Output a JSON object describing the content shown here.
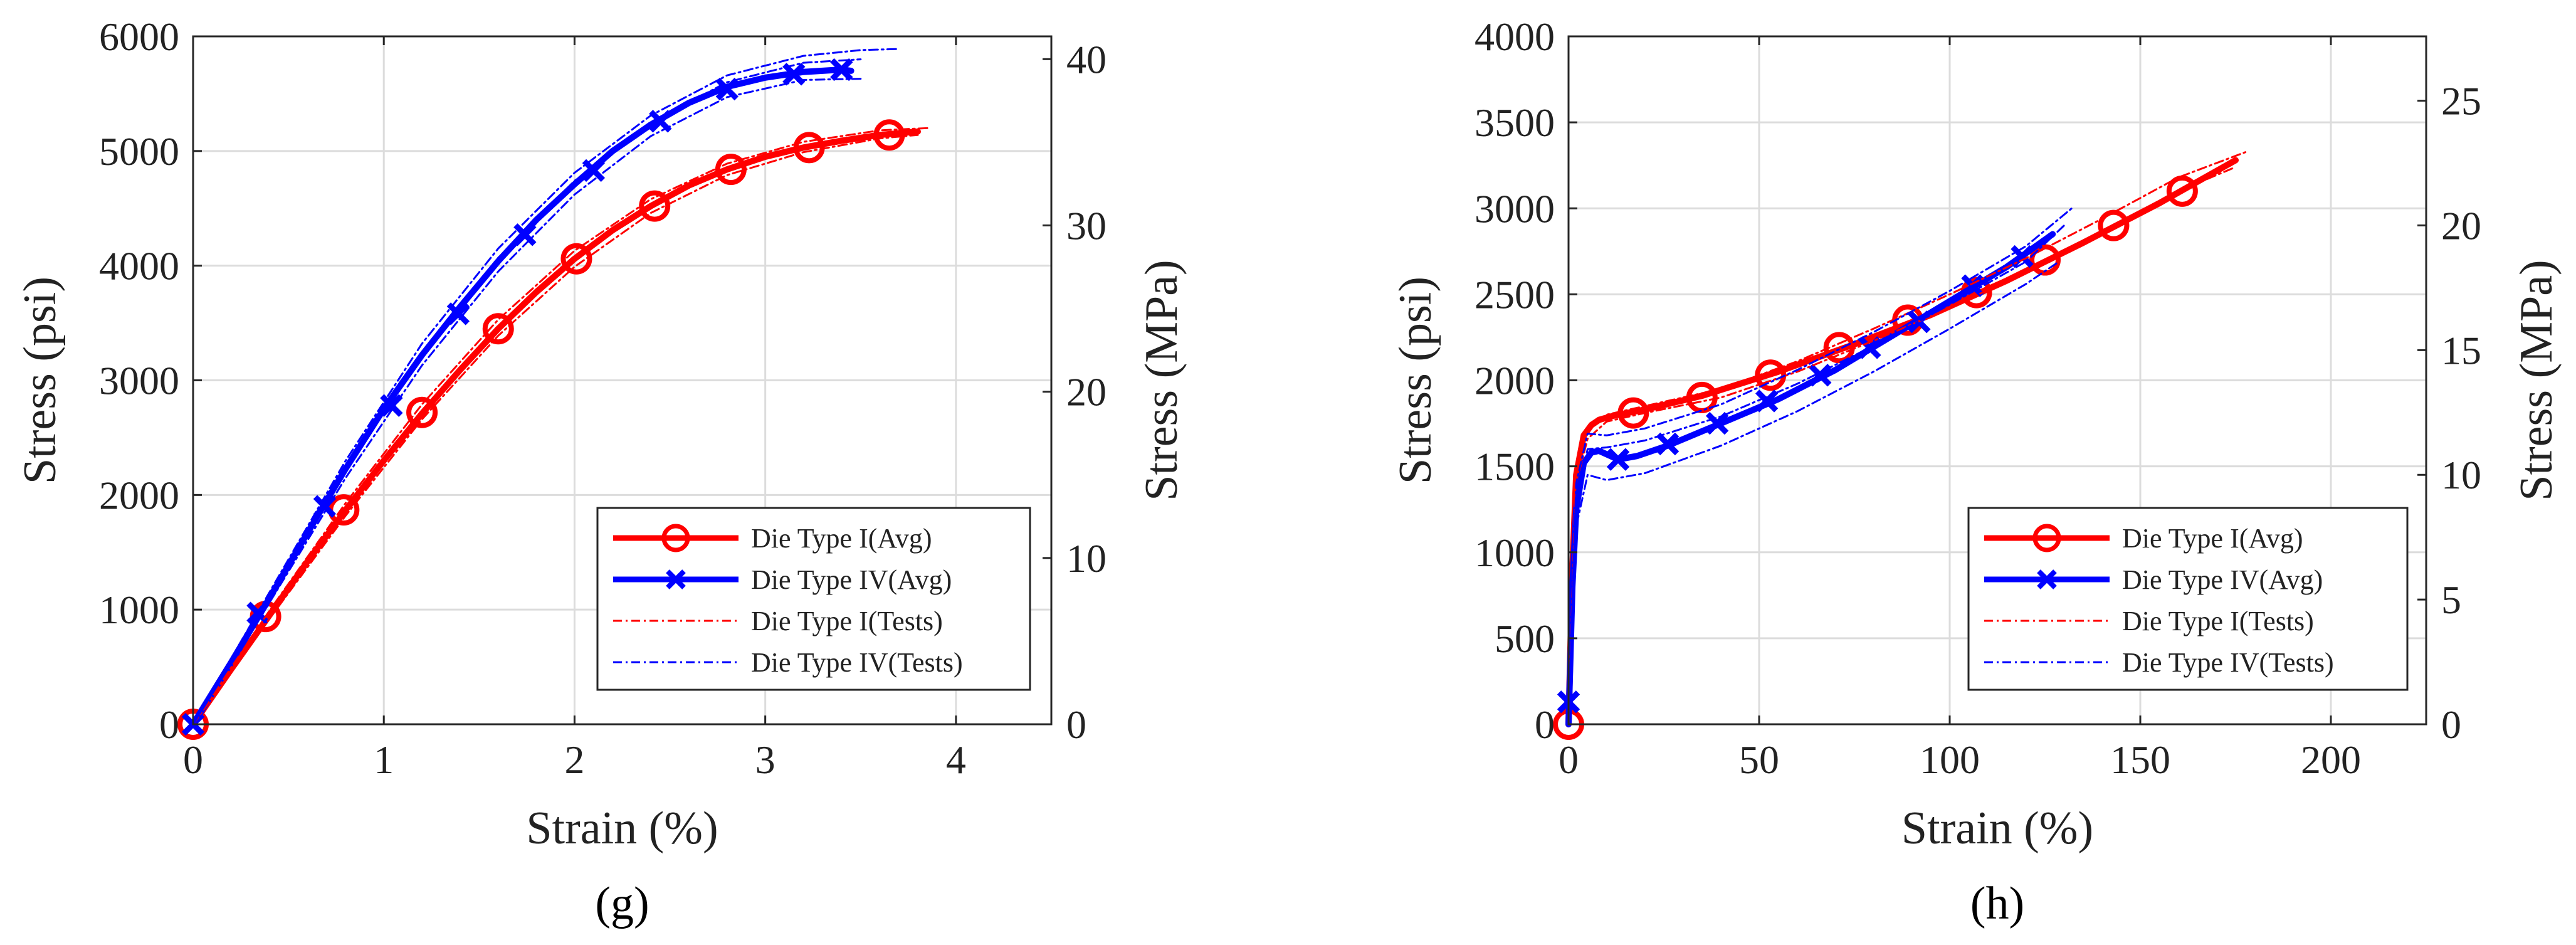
{
  "chart_data": [
    {
      "type": "line",
      "panel_label": "(g)",
      "xlabel": "Strain (%)",
      "ylabel": "Stress (psi)",
      "ylabel_right": "Stress (MPa)",
      "xlim": [
        0,
        4.5
      ],
      "ylim": [
        0,
        6000
      ],
      "ylim_right": [
        0,
        41.37
      ],
      "xticks": [
        0,
        1,
        2,
        3,
        4
      ],
      "yticks": [
        0,
        1000,
        2000,
        3000,
        4000,
        5000,
        6000
      ],
      "yticks_right": [
        0,
        10,
        20,
        30,
        40
      ],
      "grid": true,
      "legend_position": "bottom-right",
      "legend": [
        "Die Type I(Avg)",
        "Die Type IV(Avg)",
        "Die Type I(Tests)",
        "Die Type IV(Tests)"
      ],
      "series": [
        {
          "name": "Die Type I(Avg)",
          "color": "#ff0000",
          "style": "solid",
          "marker": "circle",
          "x": [
            0,
            0.2,
            0.4,
            0.6,
            0.8,
            1.0,
            1.2,
            1.4,
            1.6,
            1.8,
            2.0,
            2.2,
            2.4,
            2.6,
            2.8,
            3.0,
            3.2,
            3.4,
            3.6,
            3.8
          ],
          "y": [
            0,
            480,
            950,
            1420,
            1870,
            2300,
            2710,
            3090,
            3450,
            3770,
            4060,
            4310,
            4520,
            4700,
            4840,
            4950,
            5030,
            5090,
            5140,
            5170
          ],
          "marker_x": [
            0,
            0.38,
            0.79,
            1.2,
            1.6,
            2.01,
            2.42,
            2.82,
            3.23,
            3.65
          ],
          "marker_y": [
            0,
            940,
            1870,
            2720,
            3450,
            4060,
            4520,
            4840,
            5030,
            5140
          ]
        },
        {
          "name": "Die Type IV(Avg)",
          "color": "#0000ff",
          "style": "solid",
          "marker": "x",
          "x": [
            0,
            0.2,
            0.4,
            0.6,
            0.8,
            1.0,
            1.2,
            1.4,
            1.6,
            1.8,
            2.0,
            2.2,
            2.4,
            2.6,
            2.8,
            3.0,
            3.2,
            3.4,
            3.45
          ],
          "y": [
            0,
            540,
            1100,
            1670,
            2230,
            2750,
            3220,
            3640,
            4040,
            4400,
            4710,
            5000,
            5230,
            5420,
            5560,
            5640,
            5690,
            5710,
            5700
          ],
          "marker_x": [
            0,
            0.34,
            0.69,
            1.04,
            1.39,
            1.74,
            2.1,
            2.45,
            2.8,
            3.15,
            3.4
          ],
          "marker_y": [
            0,
            970,
            1900,
            2780,
            3580,
            4270,
            4830,
            5260,
            5540,
            5670,
            5710
          ]
        },
        {
          "name": "Die Type I(Tests)",
          "color": "#ff0000",
          "style": "dashdot",
          "marker": "none",
          "runs": [
            {
              "x": [
                0,
                0.4,
                0.8,
                1.2,
                1.6,
                2.0,
                2.4,
                2.8,
                3.2,
                3.6,
                3.85
              ],
              "y": [
                0,
                990,
                1930,
                2790,
                3530,
                4130,
                4580,
                4890,
                5080,
                5180,
                5200
              ]
            },
            {
              "x": [
                0,
                0.4,
                0.8,
                1.2,
                1.6,
                2.0,
                2.4,
                2.8,
                3.2,
                3.6,
                3.8
              ],
              "y": [
                0,
                920,
                1820,
                2660,
                3390,
                3990,
                4460,
                4790,
                4990,
                5110,
                5140
              ]
            }
          ]
        },
        {
          "name": "Die Type IV(Tests)",
          "color": "#0000ff",
          "style": "dashdot",
          "marker": "none",
          "runs": [
            {
              "x": [
                0,
                0.4,
                0.8,
                1.2,
                1.6,
                2.0,
                2.4,
                2.8,
                3.2,
                3.5,
                3.7
              ],
              "y": [
                0,
                1150,
                2300,
                3320,
                4150,
                4810,
                5310,
                5660,
                5830,
                5880,
                5890
              ]
            },
            {
              "x": [
                0,
                0.4,
                0.8,
                1.2,
                1.6,
                2.0,
                2.4,
                2.8,
                3.2,
                3.5
              ],
              "y": [
                0,
                1120,
                2250,
                3250,
                4070,
                4740,
                5250,
                5600,
                5770,
                5800
              ]
            },
            {
              "x": [
                0,
                0.4,
                0.8,
                1.2,
                1.6,
                2.0,
                2.4,
                2.8,
                3.2,
                3.5
              ],
              "y": [
                0,
                1060,
                2150,
                3130,
                3950,
                4620,
                5130,
                5470,
                5620,
                5630
              ]
            }
          ]
        }
      ]
    },
    {
      "type": "line",
      "panel_label": "(h)",
      "xlabel": "Strain (%)",
      "ylabel": "Stress (psi)",
      "ylabel_right": "Stress (MPa)",
      "xlim": [
        0,
        225
      ],
      "ylim": [
        0,
        4000
      ],
      "ylim_right": [
        0,
        27.58
      ],
      "xticks": [
        0,
        50,
        100,
        150,
        200
      ],
      "yticks": [
        0,
        500,
        1000,
        1500,
        2000,
        2500,
        3000,
        3500,
        4000
      ],
      "yticks_right": [
        0,
        5,
        10,
        15,
        20,
        25
      ],
      "grid": true,
      "legend_position": "bottom-right",
      "legend": [
        "Die Type I(Avg)",
        "Die Type IV(Avg)",
        "Die Type I(Tests)",
        "Die Type IV(Tests)"
      ],
      "series": [
        {
          "name": "Die Type I(Avg)",
          "color": "#ff0000",
          "style": "solid",
          "marker": "circle",
          "x": [
            0,
            1,
            2,
            4,
            6,
            8,
            12,
            20,
            35,
            55,
            75,
            95,
            115,
            135,
            155,
            175
          ],
          "y": [
            0,
            900,
            1450,
            1680,
            1740,
            1770,
            1795,
            1830,
            1910,
            2050,
            2210,
            2380,
            2580,
            2800,
            3030,
            3280
          ],
          "marker_x": [
            0,
            17,
            35,
            53,
            71,
            89,
            107,
            125,
            143,
            161
          ],
          "marker_y": [
            0,
            1810,
            1900,
            2030,
            2190,
            2350,
            2510,
            2700,
            2900,
            3100
          ]
        },
        {
          "name": "Die Type IV(Avg)",
          "color": "#0000ff",
          "style": "solid",
          "marker": "x",
          "x": [
            0,
            1,
            2,
            4,
            6,
            8,
            10,
            13,
            18,
            26,
            40,
            55,
            70,
            85,
            100,
            115,
            127
          ],
          "y": [
            0,
            800,
            1250,
            1520,
            1580,
            1590,
            1570,
            1540,
            1560,
            1620,
            1750,
            1890,
            2060,
            2260,
            2460,
            2660,
            2850
          ],
          "marker_x": [
            0,
            13,
            26,
            39,
            52,
            66,
            79,
            92,
            106,
            119
          ],
          "marker_y": [
            130,
            1540,
            1630,
            1750,
            1880,
            2030,
            2190,
            2340,
            2550,
            2720
          ]
        },
        {
          "name": "Die Type I(Tests)",
          "color": "#ff0000",
          "style": "dashdot",
          "marker": "none",
          "runs": [
            {
              "x": [
                0,
                2,
                5,
                10,
                20,
                40,
                60,
                80,
                100,
                120,
                140,
                160,
                178
              ],
              "y": [
                0,
                1500,
                1720,
                1800,
                1850,
                1950,
                2110,
                2300,
                2500,
                2710,
                2940,
                3180,
                3330
              ]
            },
            {
              "x": [
                0,
                2,
                5,
                10,
                20,
                40,
                60,
                80,
                100,
                120,
                140,
                160,
                175
              ],
              "y": [
                0,
                1400,
                1660,
                1760,
                1810,
                1900,
                2050,
                2230,
                2420,
                2630,
                2860,
                3100,
                3240
              ]
            }
          ]
        },
        {
          "name": "Die Type IV(Tests)",
          "color": "#0000ff",
          "style": "dashdot",
          "marker": "none",
          "runs": [
            {
              "x": [
                0,
                2,
                5,
                10,
                20,
                40,
                60,
                80,
                100,
                120,
                132
              ],
              "y": [
                0,
                1400,
                1690,
                1680,
                1720,
                1860,
                2060,
                2280,
                2520,
                2780,
                3000
              ]
            },
            {
              "x": [
                0,
                2,
                5,
                10,
                20,
                40,
                60,
                80,
                100,
                120,
                130
              ],
              "y": [
                0,
                1300,
                1600,
                1610,
                1650,
                1790,
                1980,
                2200,
                2440,
                2690,
                2900
              ]
            },
            {
              "x": [
                0,
                2,
                5,
                10,
                20,
                40,
                60,
                80,
                100,
                120,
                128
              ],
              "y": [
                0,
                1150,
                1450,
                1420,
                1460,
                1620,
                1820,
                2050,
                2300,
                2560,
                2680
              ]
            }
          ]
        }
      ]
    }
  ]
}
